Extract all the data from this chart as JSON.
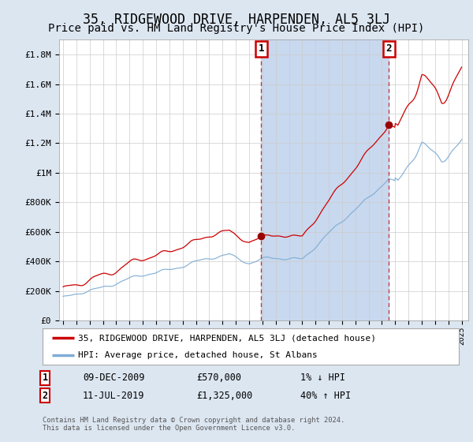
{
  "title": "35, RIDGEWOOD DRIVE, HARPENDEN, AL5 3LJ",
  "subtitle": "Price paid vs. HM Land Registry's House Price Index (HPI)",
  "ylabel_ticks": [
    "£0",
    "£200K",
    "£400K",
    "£600K",
    "£800K",
    "£1M",
    "£1.2M",
    "£1.4M",
    "£1.6M",
    "£1.8M"
  ],
  "ytick_values": [
    0,
    200000,
    400000,
    600000,
    800000,
    1000000,
    1200000,
    1400000,
    1600000,
    1800000
  ],
  "ylim": [
    0,
    1900000
  ],
  "xlim_start": 1994.7,
  "xlim_end": 2025.5,
  "xticks": [
    1995,
    1996,
    1997,
    1998,
    1999,
    2000,
    2001,
    2002,
    2003,
    2004,
    2005,
    2006,
    2007,
    2008,
    2009,
    2010,
    2011,
    2012,
    2013,
    2014,
    2015,
    2016,
    2017,
    2018,
    2019,
    2020,
    2021,
    2022,
    2023,
    2024,
    2025
  ],
  "sale1_x": 2009.92,
  "sale1_y": 570000,
  "sale1_label": "1",
  "sale2_x": 2019.53,
  "sale2_y": 1325000,
  "sale2_label": "2",
  "sale1_date": "09-DEC-2009",
  "sale1_price": "£570,000",
  "sale1_hpi": "1% ↓ HPI",
  "sale2_date": "11-JUL-2019",
  "sale2_price": "£1,325,000",
  "sale2_hpi": "40% ↑ HPI",
  "line1_label": "35, RIDGEWOOD DRIVE, HARPENDEN, AL5 3LJ (detached house)",
  "line2_label": "HPI: Average price, detached house, St Albans",
  "line1_color": "#cc0000",
  "line2_color": "#7fadd4",
  "background_color": "#dce6f1",
  "plot_bg_color": "#ffffff",
  "grid_color": "#cccccc",
  "sale_marker_color": "#990000",
  "vline_color": "#cc0000",
  "span_color": "#c8d8ee",
  "footnote": "Contains HM Land Registry data © Crown copyright and database right 2024.\nThis data is licensed under the Open Government Licence v3.0.",
  "title_fontsize": 12,
  "subtitle_fontsize": 10,
  "legend_fontsize": 8,
  "annot_fontsize": 8.5
}
